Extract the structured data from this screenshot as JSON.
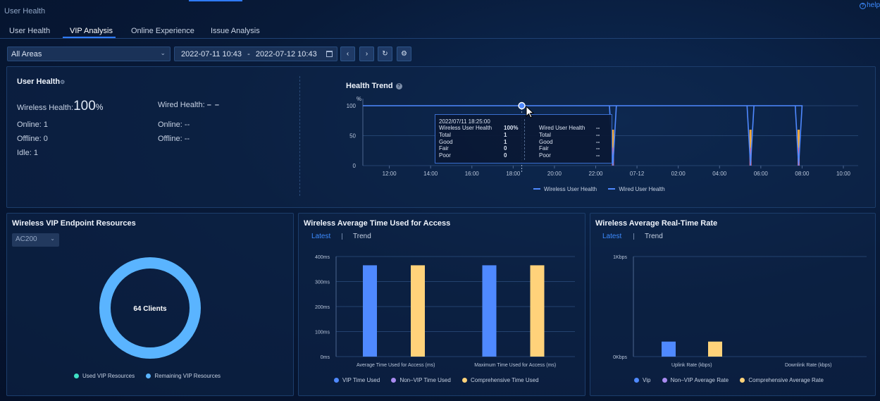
{
  "app": {
    "title": "User Health",
    "help": "help"
  },
  "tabs": [
    "User Health",
    "VIP Analysis",
    "Online Experience",
    "Issue Analysis"
  ],
  "filters": {
    "area": "All Areas",
    "date_from": "2022-07-11 10:43",
    "date_sep": "-",
    "date_to": "2022-07-12 10:43"
  },
  "user_health": {
    "title": "User Health",
    "wireless_label": "Wireless Health:",
    "wireless_value": "100",
    "wireless_unit": "%",
    "wired_label": "Wired Health:",
    "wired_value": "– –",
    "online": "Online: 1",
    "offline": "Offline: 0",
    "idle": "Idle: 1",
    "wired_online": "Online: --",
    "wired_offline": "Offline: --"
  },
  "health_trend": {
    "title": "Health Trend",
    "help": "?",
    "legend": [
      "Wireless User Health",
      "Wired User Health"
    ],
    "tooltip": {
      "time": "2022/07/11 18:25:00",
      "left": [
        [
          "Wireless User Health",
          "100%"
        ],
        [
          "Total",
          "1"
        ],
        [
          "Good",
          "1"
        ],
        [
          "Fair",
          "0"
        ],
        [
          "Poor",
          "0"
        ]
      ],
      "right": [
        [
          "Wired User Health",
          "--"
        ],
        [
          "Total",
          "--"
        ],
        [
          "Good",
          "--"
        ],
        [
          "Fair",
          "--"
        ],
        [
          "Poor",
          "--"
        ]
      ]
    }
  },
  "vip_resources": {
    "title": "Wireless VIP Endpoint Resources",
    "device": "AC200",
    "center": "64 Clients",
    "legend": [
      "Used VIP Resources",
      "Remaining VIP Resources"
    ]
  },
  "access_time": {
    "title": "Wireless Average Time Used for Access",
    "tabs": [
      "Latest",
      "Trend"
    ],
    "legend": [
      "VIP Time Used",
      "Non–VIP Time Used",
      "Comprehensive Time Used"
    ]
  },
  "realtime_rate": {
    "title": "Wireless Average Real-Time Rate",
    "tabs": [
      "Latest",
      "Trend"
    ],
    "legend": [
      "Vip",
      "Non–VIP Average Rate",
      "Comprehensive Average Rate"
    ]
  },
  "colors": {
    "accent": "#2f7bff",
    "vip": "#4f89ff",
    "non_vip": "#a98bf0",
    "comprehensive": "#ffd27a",
    "used": "#3fe0c5",
    "remaining": "#5ab4ff",
    "fair": "#f2a83a",
    "poor": "#ff5f6b"
  },
  "icons": {
    "prev": "chevron-left",
    "next": "chevron-right",
    "refresh": "refresh",
    "settings": "gear",
    "calendar": "calendar"
  },
  "chart_data": [
    {
      "type": "line",
      "title": "Health Trend",
      "ylabel": "%",
      "ylim": [
        0,
        100
      ],
      "yticks": [
        "0",
        "50",
        "100"
      ],
      "xticks": [
        "12:00",
        "14:00",
        "16:00",
        "18:00",
        "20:00",
        "22:00",
        "07-12",
        "02:00",
        "04:00",
        "06:00",
        "08:00",
        "10:00"
      ],
      "series": [
        {
          "name": "Wireless User Health",
          "x": [
            "10:43",
            "22:40",
            "22:50",
            "23:00",
            "05:20",
            "05:30",
            "05:40",
            "07:40",
            "07:50",
            "08:00",
            "10:43"
          ],
          "values": [
            100,
            100,
            0,
            100,
            100,
            0,
            100,
            100,
            0,
            100,
            100
          ]
        },
        {
          "name": "Wired User Health",
          "x": [],
          "values": []
        }
      ],
      "legend": [
        "Wireless User Health",
        "Wired User Health"
      ]
    },
    {
      "type": "pie",
      "title": "Wireless VIP Endpoint Resources",
      "labels": [
        "Used VIP Resources",
        "Remaining VIP Resources"
      ],
      "values": [
        0,
        64
      ],
      "center": "64 Clients"
    },
    {
      "type": "bar",
      "title": "Wireless Average Time Used for Access",
      "categories": [
        "Average Time Used for Access (ms)",
        "Maximum Time Used for Access (ms)"
      ],
      "ylim": [
        0,
        400
      ],
      "yticks": [
        "0ms",
        "100ms",
        "200ms",
        "300ms",
        "400ms"
      ],
      "series": [
        {
          "name": "VIP Time Used",
          "values": [
            365,
            365
          ]
        },
        {
          "name": "Non–VIP Time Used",
          "values": [
            0,
            0
          ]
        },
        {
          "name": "Comprehensive Time Used",
          "values": [
            365,
            365
          ]
        }
      ]
    },
    {
      "type": "bar",
      "title": "Wireless Average Real-Time Rate",
      "categories": [
        "Uplink Rate (kbps)",
        "Downlink Rate (kbps)"
      ],
      "ylim": [
        0,
        1
      ],
      "yticks": [
        "0Kbps",
        "1Kbps"
      ],
      "series": [
        {
          "name": "Vip",
          "values": [
            0.15,
            0
          ]
        },
        {
          "name": "Non–VIP Average Rate",
          "values": [
            0,
            0
          ]
        },
        {
          "name": "Comprehensive Average Rate",
          "values": [
            0.15,
            0
          ]
        }
      ]
    }
  ]
}
